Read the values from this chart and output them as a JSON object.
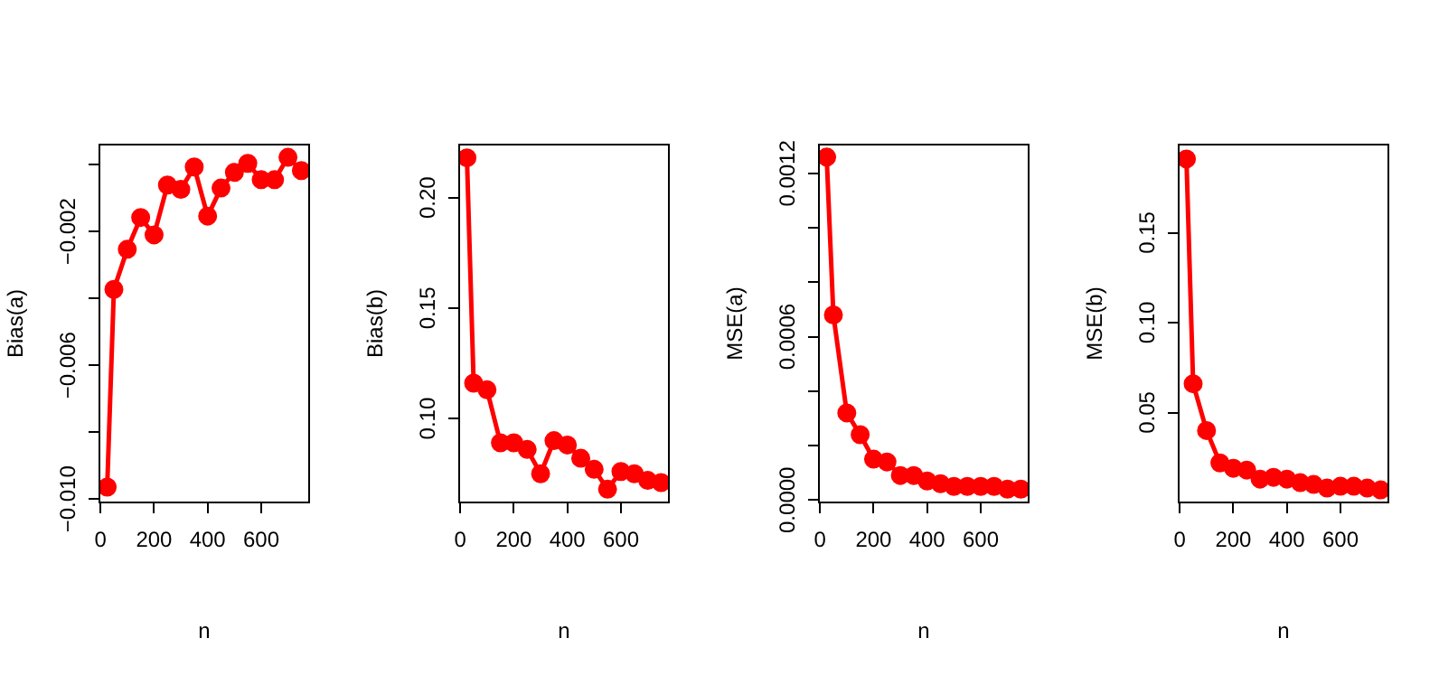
{
  "chart_data": [
    {
      "type": "line",
      "xlabel": "n",
      "ylabel": "Bias(a)",
      "color": "#ff0000",
      "marker": "circle",
      "grid": false,
      "x": [
        25,
        50,
        100,
        150,
        200,
        250,
        300,
        350,
        400,
        450,
        500,
        550,
        600,
        650,
        700,
        750
      ],
      "values": [
        -0.00964,
        -0.00373,
        -0.00253,
        -0.00158,
        -0.0021,
        -0.00061,
        -0.00074,
        -7e-05,
        -0.00154,
        -0.0007,
        -0.00023,
        4e-05,
        -0.00045,
        -0.00045,
        0.00022,
        -0.00018
      ],
      "xlim": [
        -4,
        779
      ],
      "xticks": [
        0,
        200,
        400,
        600
      ],
      "ylim": [
        -0.0101,
        0.0006
      ],
      "yticks": [
        {
          "value": -0.01,
          "label": "−0.010"
        },
        {
          "value": -0.008,
          "label": null
        },
        {
          "value": -0.006,
          "label": "−0.006"
        },
        {
          "value": -0.004,
          "label": null
        },
        {
          "value": -0.002,
          "label": "−0.002"
        },
        {
          "value": 0,
          "label": null
        }
      ]
    },
    {
      "type": "line",
      "xlabel": "n",
      "ylabel": "Bias(b)",
      "color": "#ff0000",
      "marker": "circle",
      "grid": false,
      "x": [
        25,
        50,
        100,
        150,
        200,
        250,
        300,
        350,
        400,
        450,
        500,
        550,
        600,
        650,
        700,
        750
      ],
      "values": [
        0.218,
        0.116,
        0.113,
        0.089,
        0.089,
        0.086,
        0.075,
        0.09,
        0.088,
        0.082,
        0.077,
        0.068,
        0.076,
        0.075,
        0.072,
        0.071
      ],
      "xlim": [
        -4,
        779
      ],
      "xticks": [
        0,
        200,
        400,
        600
      ],
      "ylim": [
        0.062,
        0.224
      ],
      "yticks": [
        {
          "value": 0.1,
          "label": "0.10"
        },
        {
          "value": 0.15,
          "label": "0.15"
        },
        {
          "value": 0.2,
          "label": "0.20"
        }
      ]
    },
    {
      "type": "line",
      "xlabel": "n",
      "ylabel": "MSE(a)",
      "color": "#ff0000",
      "marker": "circle",
      "grid": false,
      "x": [
        25,
        50,
        100,
        150,
        200,
        250,
        300,
        350,
        400,
        450,
        500,
        550,
        600,
        650,
        700,
        750
      ],
      "values": [
        0.00126,
        0.00068,
        0.00032,
        0.00024,
        0.00015,
        0.00014,
        9e-05,
        9e-05,
        7e-05,
        6e-05,
        5e-05,
        5e-05,
        5e-05,
        5e-05,
        4e-05,
        4e-05
      ],
      "xlim": [
        -4,
        779
      ],
      "xticks": [
        0,
        200,
        400,
        600
      ],
      "ylim": [
        -9e-06,
        0.001306
      ],
      "yticks": [
        {
          "value": 0,
          "label": "0.0000"
        },
        {
          "value": 0.0002,
          "label": null
        },
        {
          "value": 0.0004,
          "label": null
        },
        {
          "value": 0.0006,
          "label": "0.0006"
        },
        {
          "value": 0.0008,
          "label": null
        },
        {
          "value": 0.001,
          "label": null
        },
        {
          "value": 0.0012,
          "label": "0.0012"
        }
      ]
    },
    {
      "type": "line",
      "xlabel": "n",
      "ylabel": "MSE(b)",
      "color": "#ff0000",
      "marker": "circle",
      "grid": false,
      "x": [
        25,
        50,
        100,
        150,
        200,
        250,
        300,
        350,
        400,
        450,
        500,
        550,
        600,
        650,
        700,
        750
      ],
      "values": [
        0.191,
        0.066,
        0.04,
        0.022,
        0.019,
        0.018,
        0.013,
        0.014,
        0.013,
        0.011,
        0.01,
        0.008,
        0.009,
        0.009,
        0.008,
        0.007
      ],
      "xlim": [
        -4,
        779
      ],
      "xticks": [
        0,
        200,
        400,
        600
      ],
      "ylim": [
        0,
        0.199
      ],
      "yticks": [
        {
          "value": 0.05,
          "label": "0.05"
        },
        {
          "value": 0.1,
          "label": "0.10"
        },
        {
          "value": 0.15,
          "label": "0.15"
        }
      ]
    }
  ]
}
